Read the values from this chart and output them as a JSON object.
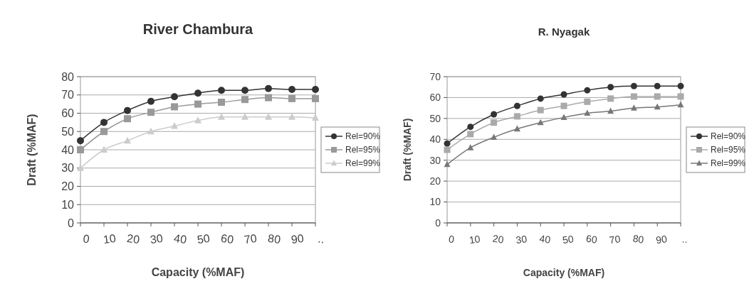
{
  "chart_data": [
    {
      "type": "line",
      "title": "River Chambura",
      "xlabel": "Capacity (%MAF)",
      "ylabel": "Draft (%MAF)",
      "categories": [
        "0",
        "10",
        "20",
        "30",
        "40",
        "50",
        "60",
        "70",
        "80",
        "90",
        ".."
      ],
      "ylim": [
        0,
        80
      ],
      "yticks": [
        0,
        10,
        20,
        30,
        40,
        50,
        60,
        70,
        80
      ],
      "grid": "y",
      "legend": "right",
      "series": [
        {
          "name": "Rel=90%",
          "color": "#333333",
          "marker": "circle",
          "values": [
            45,
            55,
            61.5,
            66.5,
            69,
            71,
            72.5,
            72.5,
            73.5,
            73,
            73
          ]
        },
        {
          "name": "Rel=95%",
          "color": "#999999",
          "marker": "square",
          "values": [
            40,
            50,
            57,
            60.5,
            63.5,
            65,
            66,
            67.5,
            68.5,
            68,
            68
          ]
        },
        {
          "name": "Rel=99%",
          "color": "#cccccc",
          "marker": "triangle",
          "values": [
            30,
            40,
            45,
            50,
            53,
            56,
            58,
            58,
            58,
            58,
            57.5
          ]
        }
      ]
    },
    {
      "type": "line",
      "title": "R. Nyagak",
      "xlabel": "Capacity (%MAF)",
      "ylabel": "Draft (%MAF)",
      "categories": [
        "0",
        "10",
        "20",
        "30",
        "40",
        "50",
        "60",
        "70",
        "80",
        "90",
        ".."
      ],
      "ylim": [
        0,
        70
      ],
      "yticks": [
        0,
        10,
        20,
        30,
        40,
        50,
        60,
        70
      ],
      "grid": "y",
      "legend": "right",
      "series": [
        {
          "name": "Rel=90%",
          "color": "#333333",
          "marker": "circle",
          "values": [
            38,
            46,
            52,
            56,
            59.5,
            61.5,
            63.5,
            65,
            65.5,
            65.5,
            65.5
          ]
        },
        {
          "name": "Rel=95%",
          "color": "#aaaaaa",
          "marker": "square",
          "values": [
            35,
            42.5,
            48,
            51,
            54,
            56,
            58,
            59.5,
            60.5,
            60.5,
            60.5
          ]
        },
        {
          "name": "Rel=99%",
          "color": "#777777",
          "marker": "triangle",
          "values": [
            28,
            36,
            41,
            45,
            48,
            50.5,
            52.5,
            53.5,
            55,
            55.5,
            56.5
          ]
        }
      ]
    }
  ]
}
